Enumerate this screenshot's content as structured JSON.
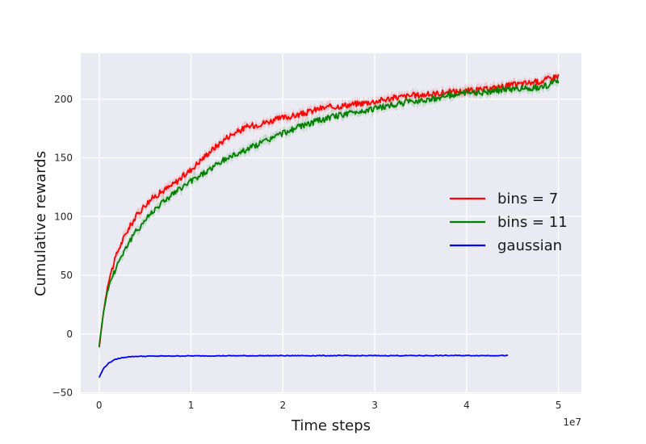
{
  "chart_data": {
    "type": "line",
    "title": "",
    "xlabel": "Time steps",
    "ylabel": "Cumulative rewards",
    "x_offset_label": "1e7",
    "x_multiplier": 10000000,
    "xlim": [
      -0.2,
      5.25
    ],
    "ylim": [
      -51,
      239
    ],
    "xticks": [
      0,
      1,
      2,
      3,
      4,
      5
    ],
    "xtick_labels": [
      "0",
      "1",
      "2",
      "3",
      "4",
      "5"
    ],
    "yticks": [
      -50,
      0,
      50,
      100,
      150,
      200
    ],
    "ytick_labels": [
      "−50",
      "0",
      "50",
      "100",
      "150",
      "200"
    ],
    "grid": true,
    "legend_position": "center-right",
    "series": [
      {
        "name": "bins = 7",
        "color": "#ff0000",
        "x": [
          0,
          0.05,
          0.1,
          0.2,
          0.3,
          0.4,
          0.5,
          0.6,
          0.7,
          0.8,
          1.0,
          1.2,
          1.4,
          1.6,
          1.8,
          2.0,
          2.2,
          2.4,
          2.6,
          2.8,
          3.0,
          3.2,
          3.4,
          3.6,
          3.8,
          4.0,
          4.2,
          4.4,
          4.6,
          4.8,
          5.0
        ],
        "y": [
          -12,
          20,
          45,
          70,
          87,
          100,
          110,
          117,
          122,
          127,
          140,
          155,
          168,
          176,
          180,
          184,
          187,
          192,
          194,
          196,
          198,
          201,
          203,
          204,
          206,
          207,
          208,
          211,
          213,
          215,
          220
        ]
      },
      {
        "name": "bins = 11",
        "color": "#008000",
        "x": [
          0,
          0.05,
          0.1,
          0.2,
          0.3,
          0.4,
          0.5,
          0.6,
          0.7,
          0.8,
          1.0,
          1.2,
          1.4,
          1.6,
          1.8,
          2.0,
          2.2,
          2.4,
          2.6,
          2.8,
          3.0,
          3.2,
          3.4,
          3.6,
          3.8,
          4.0,
          4.2,
          4.4,
          4.6,
          4.8,
          5.0
        ],
        "y": [
          -10,
          20,
          40,
          60,
          75,
          87,
          97,
          106,
          113,
          119,
          130,
          140,
          150,
          157,
          164,
          171,
          177,
          182,
          186,
          189,
          192,
          195,
          198,
          200,
          203,
          205,
          206,
          208,
          209,
          210,
          215
        ]
      },
      {
        "name": "gaussian",
        "color": "#0000ff",
        "x": [
          0,
          0.05,
          0.1,
          0.15,
          0.2,
          0.3,
          0.4,
          0.6,
          1.0,
          2.0,
          3.0,
          4.0,
          4.45
        ],
        "y": [
          -37,
          -29,
          -25,
          -22.5,
          -21,
          -19.5,
          -19,
          -18.8,
          -18.6,
          -18.4,
          -18.4,
          -18.3,
          -18.3
        ]
      }
    ]
  }
}
